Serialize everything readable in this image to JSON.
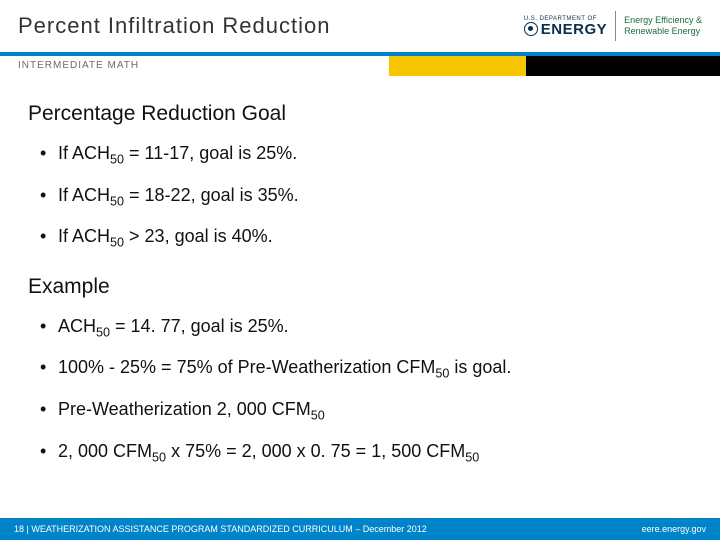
{
  "header": {
    "title": "Percent Infiltration Reduction",
    "band_color": "#0084c9",
    "logo": {
      "dept_small": "U.S. DEPARTMENT OF",
      "dept_big": "ENERGY",
      "eere_line1": "Energy Efficiency &",
      "eere_line2": "Renewable Energy",
      "doe_color": "#0a2f4f",
      "eere_color": "#1f6a3a"
    }
  },
  "subband": {
    "label": "INTERMEDIATE MATH",
    "left_bg": "#ffffff",
    "mid_bg": "#f7c600",
    "right_bg": "#000000",
    "label_color": "#6d6d6d"
  },
  "content": {
    "section1": {
      "heading": "Percentage Reduction Goal",
      "items": [
        {
          "pre": "If ACH",
          "sub": "50",
          "post": " = 11-17, goal is 25%."
        },
        {
          "pre": "If ACH",
          "sub": "50",
          "post": " = 18-22, goal is 35%."
        },
        {
          "pre": "If ACH",
          "sub": "50",
          "post": " > 23, goal is 40%."
        }
      ]
    },
    "section2": {
      "heading": "Example",
      "items": [
        {
          "segs": [
            {
              "t": "ACH"
            },
            {
              "t": "50",
              "sub": true
            },
            {
              "t": " = 14. 77, goal is 25%."
            }
          ]
        },
        {
          "segs": [
            {
              "t": "100% - 25% = 75% of Pre-Weatherization CFM"
            },
            {
              "t": "50",
              "sub": true
            },
            {
              "t": " is goal."
            }
          ]
        },
        {
          "segs": [
            {
              "t": "Pre-Weatherization 2, 000 CFM"
            },
            {
              "t": "50",
              "sub": true
            }
          ]
        },
        {
          "segs": [
            {
              "t": "2, 000 CFM"
            },
            {
              "t": "50",
              "sub": true
            },
            {
              "t": " x 75% = 2, 000 x 0. 75 = 1, 500 CFM"
            },
            {
              "t": "50",
              "sub": true
            }
          ]
        }
      ]
    }
  },
  "footer": {
    "left": "18 | WEATHERIZATION ASSISTANCE PROGRAM STANDARDIZED CURRICULUM – December 2012",
    "right": "eere.energy.gov",
    "bg": "#0084c9"
  },
  "typography": {
    "title_fontsize": 22,
    "heading_fontsize": 21,
    "bullet_fontsize": 18,
    "footer_fontsize": 9,
    "subband_fontsize": 10
  }
}
